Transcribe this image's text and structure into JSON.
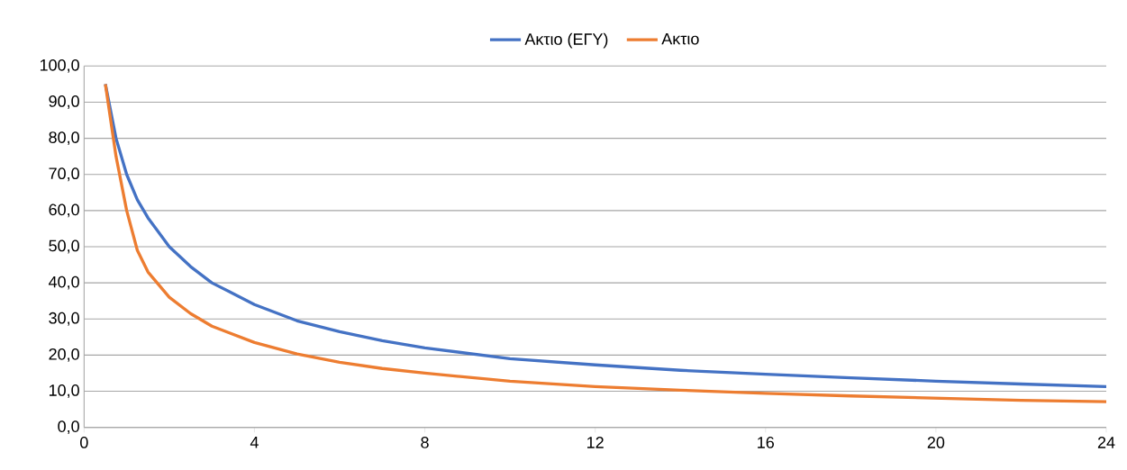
{
  "chart_data": {
    "type": "line",
    "legend": "top",
    "grid": "y",
    "xlim": [
      0,
      24
    ],
    "xticks": [
      0,
      4,
      8,
      12,
      16,
      20,
      24
    ],
    "ylim": [
      0,
      100
    ],
    "yticks": [
      {
        "value": 0,
        "label": "0,0"
      },
      {
        "value": 10,
        "label": "10,0"
      },
      {
        "value": 20,
        "label": "20,0"
      },
      {
        "value": 30,
        "label": "30,0"
      },
      {
        "value": 40,
        "label": "40,0"
      },
      {
        "value": 50,
        "label": "50,0"
      },
      {
        "value": 60,
        "label": "60,0"
      },
      {
        "value": 70,
        "label": "70,0"
      },
      {
        "value": 80,
        "label": "80,0"
      },
      {
        "value": 90,
        "label": "90,0"
      },
      {
        "value": 100,
        "label": "100,0"
      }
    ],
    "x": [
      0.5,
      0.75,
      1,
      1.25,
      1.5,
      2,
      2.5,
      3,
      4,
      5,
      6,
      7,
      8,
      10,
      12,
      14,
      16,
      18,
      20,
      22,
      24
    ],
    "series": [
      {
        "name": "Ακτιο (ΕΓΥ)",
        "color": "#4472c4",
        "values": [
          95,
          80,
          70,
          63,
          58,
          50,
          44.5,
          40,
          34,
          29.5,
          26.5,
          24,
          22,
          19,
          17.3,
          15.8,
          14.7,
          13.7,
          12.8,
          12,
          11.3
        ]
      },
      {
        "name": "Ακτιο",
        "color": "#ed7d31",
        "values": [
          95,
          75,
          60,
          49,
          43,
          36,
          31.5,
          28,
          23.5,
          20.3,
          18,
          16.3,
          15,
          12.8,
          11.3,
          10.3,
          9.4,
          8.7,
          8.1,
          7.5,
          7.1
        ]
      }
    ]
  }
}
